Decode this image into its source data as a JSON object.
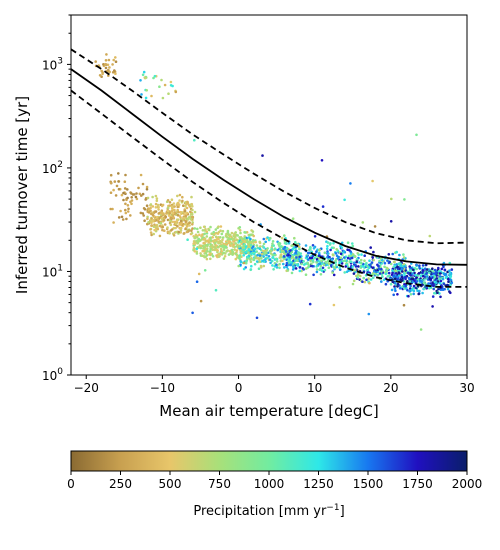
{
  "chart_data": {
    "type": "scatter",
    "title": "",
    "xlabel": "Mean air temperature [degC]",
    "ylabel": "Inferred turnover time [yr]",
    "xlim": [
      -22,
      30
    ],
    "ylim": [
      1,
      3000
    ],
    "yscale": "log",
    "grid": false,
    "x_ticks": [
      -20,
      -10,
      0,
      10,
      20,
      30
    ],
    "x_tick_labels": [
      "−20",
      "−10",
      "0",
      "10",
      "20",
      "30"
    ],
    "y_ticks": [
      1,
      10,
      100,
      1000
    ],
    "y_tick_labels": [
      "10",
      "10",
      "10",
      "10"
    ],
    "y_tick_exponents": [
      "0",
      "1",
      "2",
      "3"
    ],
    "colorbar": {
      "label": "Precipitation [mm yr",
      "label_exponent": "−1",
      "label_suffix": "]",
      "min": 0,
      "max": 2000,
      "ticks": [
        0,
        250,
        500,
        750,
        1000,
        1250,
        1500,
        1750,
        2000
      ],
      "tick_labels": [
        "0",
        "250",
        "500",
        "750",
        "1000",
        "1250",
        "1500",
        "1750",
        "2000"
      ],
      "colormap_stops": [
        "#8a6a32",
        "#c8a050",
        "#e8c66a",
        "#a8e07a",
        "#72eca0",
        "#2ee8e8",
        "#1878f0",
        "#2010c0",
        "#0a1e6a"
      ]
    },
    "curves": [
      {
        "style": "solid",
        "color": "#000000",
        "x": [
          -22,
          -18,
          -14,
          -10,
          -6,
          -2,
          2,
          6,
          10,
          14,
          18,
          22,
          26,
          30
        ],
        "y": [
          900,
          560,
          335,
          200,
          122,
          77,
          50,
          33.5,
          23.7,
          17.6,
          14.2,
          12.5,
          11.7,
          11.6
        ]
      },
      {
        "style": "dashed",
        "color": "#000000",
        "x": [
          -22,
          -18,
          -14,
          -10,
          -6,
          -2,
          2,
          6,
          10,
          14,
          18,
          22,
          26,
          30
        ],
        "y": [
          1400,
          900,
          560,
          340,
          210,
          135,
          88,
          59,
          41,
          30,
          23.5,
          20,
          18.7,
          19
        ]
      },
      {
        "style": "dashed",
        "color": "#000000",
        "x": [
          -22,
          -18,
          -14,
          -10,
          -6,
          -2,
          2,
          6,
          10,
          14,
          18,
          22,
          26,
          30
        ],
        "y": [
          560,
          335,
          200,
          120,
          73,
          46,
          30,
          20.5,
          14.5,
          10.9,
          8.8,
          7.7,
          7.1,
          7.1
        ]
      }
    ],
    "point_clusters": [
      {
        "x_range": [
          -19,
          -16
        ],
        "log10_y_range": [
          2.85,
          3.1
        ],
        "precip_range": [
          150,
          450
        ],
        "count": 35
      },
      {
        "x_range": [
          -13,
          -8
        ],
        "log10_y_range": [
          2.6,
          2.95
        ],
        "precip_range": [
          200,
          1400
        ],
        "count": 25
      },
      {
        "x_range": [
          -17,
          -12
        ],
        "log10_y_range": [
          1.45,
          2.0
        ],
        "precip_range": [
          100,
          400
        ],
        "count": 70
      },
      {
        "x_range": [
          -12,
          -6
        ],
        "log10_y_range": [
          1.3,
          1.75
        ],
        "precip_range": [
          200,
          700
        ],
        "count": 320
      },
      {
        "x_range": [
          -6,
          2
        ],
        "log10_y_range": [
          1.1,
          1.45
        ],
        "precip_range": [
          450,
          900
        ],
        "count": 380
      },
      {
        "x_range": [
          0,
          8
        ],
        "log10_y_range": [
          1.0,
          1.35
        ],
        "precip_range": [
          500,
          1500
        ],
        "count": 320
      },
      {
        "x_range": [
          6,
          15
        ],
        "log10_y_range": [
          0.95,
          1.3
        ],
        "precip_range": [
          700,
          1800
        ],
        "count": 320
      },
      {
        "x_range": [
          15,
          22
        ],
        "log10_y_range": [
          0.85,
          1.2
        ],
        "precip_range": [
          600,
          1900
        ],
        "count": 250
      },
      {
        "x_range": [
          20,
          28
        ],
        "log10_y_range": [
          0.75,
          1.1
        ],
        "precip_range": [
          1000,
          2000
        ],
        "count": 420
      },
      {
        "x_range": [
          -8,
          27
        ],
        "log10_y_range": [
          0.2,
          2.5
        ],
        "precip_range": [
          100,
          2000
        ],
        "count": 45
      }
    ]
  }
}
